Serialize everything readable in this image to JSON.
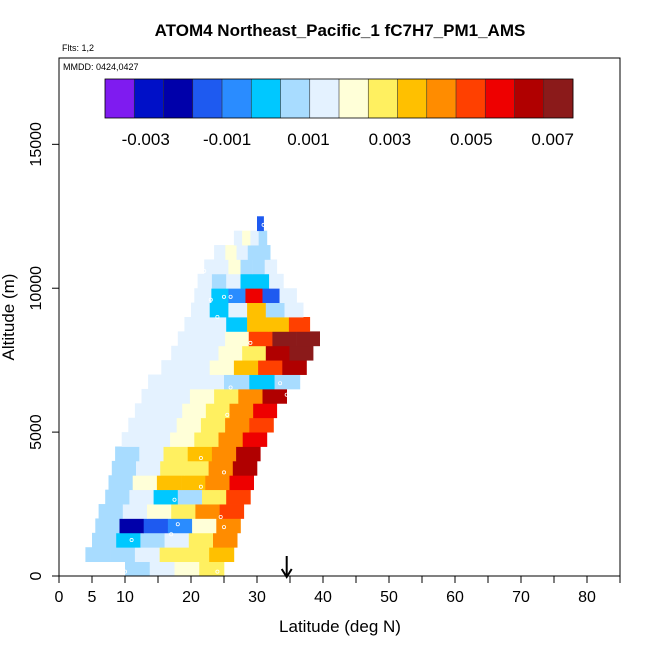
{
  "chart_data": {
    "type": "heatmap",
    "title": "ATOM4 Northeast_Pacific_1 fC7H7_PM1_AMS",
    "annotations": {
      "flights": "Flts: 1,2",
      "dates": "MMDD: 0424,0427"
    },
    "xlabel": "Latitude (deg N)",
    "ylabel": "Altitude (m)",
    "xlim": [
      0,
      85
    ],
    "ylim": [
      0,
      18000
    ],
    "x_ticks": [
      {
        "value": 0,
        "label": "0"
      },
      {
        "value": 5,
        "label": "5"
      },
      {
        "value": 10,
        "label": "10"
      },
      {
        "value": 20,
        "label": "20"
      },
      {
        "value": 30,
        "label": "30"
      },
      {
        "value": 40,
        "label": "40"
      },
      {
        "value": 50,
        "label": "50"
      },
      {
        "value": 60,
        "label": "60"
      },
      {
        "value": 70,
        "label": "70"
      },
      {
        "value": 80,
        "label": "80"
      }
    ],
    "x_minor_ticks": [
      15,
      25,
      35,
      45,
      55,
      65,
      75,
      85
    ],
    "y_ticks": [
      {
        "value": 0,
        "label": "0"
      },
      {
        "value": 5000,
        "label": "5000"
      },
      {
        "value": 10000,
        "label": "10000"
      },
      {
        "value": 15000,
        "label": "15000"
      }
    ],
    "colorbar": {
      "range": [
        -0.004,
        0.0075
      ],
      "ticks": [
        {
          "value": -0.003,
          "label": "-0.003"
        },
        {
          "value": -0.001,
          "label": "-0.001"
        },
        {
          "value": 0.001,
          "label": "0.001"
        },
        {
          "value": 0.003,
          "label": "0.003"
        },
        {
          "value": 0.005,
          "label": "0.005"
        },
        {
          "value": 0.007,
          "label": "0.007"
        }
      ],
      "colors": [
        "#7f1bf0",
        "#0010c8",
        "#0000aa",
        "#1e5af0",
        "#2a8cff",
        "#00c8ff",
        "#a8dcff",
        "#e4f2ff",
        "#ffffd8",
        "#fff060",
        "#ffc000",
        "#ff8c00",
        "#ff4000",
        "#ee0000",
        "#b00000",
        "#8b1a1a"
      ]
    },
    "marker": {
      "latitude": 34.5,
      "label": "arrow"
    },
    "profiles": [
      {
        "alt": 250,
        "lat_min": 10,
        "lat_max": 25,
        "values": [
          0.0006,
          0.0013,
          0.0022,
          0.003
        ]
      },
      {
        "alt": 750,
        "lat_min": 4,
        "lat_max": 26.5,
        "values": [
          0.0006,
          0.0009,
          0.0014,
          0.0025,
          0.0031,
          0.0037
        ]
      },
      {
        "alt": 1250,
        "lat_min": 5,
        "lat_max": 27,
        "values": [
          0.0008,
          -0.0001,
          0.0004,
          0.0015,
          0.003,
          0.0045
        ]
      },
      {
        "alt": 1750,
        "lat_min": 5.5,
        "lat_max": 27.5,
        "values": [
          0.0005,
          -0.0022,
          -0.0015,
          -0.001,
          0.0022,
          0.004
        ]
      },
      {
        "alt": 2250,
        "lat_min": 6,
        "lat_max": 28,
        "values": [
          0.0009,
          0.0012,
          0.0021,
          0.003,
          0.0042,
          0.005
        ]
      },
      {
        "alt": 2750,
        "lat_min": 7,
        "lat_max": 29,
        "values": [
          0.0008,
          0.0012,
          0.0003,
          0.0006,
          0.0031,
          0.0052
        ]
      },
      {
        "alt": 3250,
        "lat_min": 7.5,
        "lat_max": 29.5,
        "values": [
          0.0008,
          0.0023,
          0.0032,
          0.0035,
          0.0044,
          0.0058
        ]
      },
      {
        "alt": 3750,
        "lat_min": 8,
        "lat_max": 30,
        "values": [
          0.0009,
          0.0017,
          0.0026,
          0.003,
          0.0042,
          0.0062
        ]
      },
      {
        "alt": 4250,
        "lat_min": 8.5,
        "lat_max": 30.5,
        "values": [
          0.001,
          0.0016,
          0.0028,
          0.0033,
          0.0045,
          0.0062
        ]
      },
      {
        "alt": 4750,
        "lat_min": 9.5,
        "lat_max": 31.5,
        "values": [
          0.0011,
          0.0014,
          0.0022,
          0.0031,
          0.0043,
          0.0058
        ]
      },
      {
        "alt": 5250,
        "lat_min": 10.5,
        "lat_max": 32.5,
        "values": [
          0.0011,
          0.0016,
          0.0021,
          0.0029,
          0.0041,
          0.0052
        ]
      },
      {
        "alt": 5750,
        "lat_min": 11.5,
        "lat_max": 33,
        "values": [
          0.0012,
          0.0016,
          0.0022,
          0.003,
          0.0042,
          0.0056
        ]
      },
      {
        "alt": 6250,
        "lat_min": 12.5,
        "lat_max": 34.5,
        "values": [
          0.0012,
          0.0016,
          0.0021,
          0.0031,
          0.0045,
          0.0062
        ]
      },
      {
        "alt": 6750,
        "lat_min": 13.5,
        "lat_max": 36.5,
        "values": [
          0.0012,
          0.0014,
          0.0017,
          0.001,
          0.0002,
          0.0006
        ]
      },
      {
        "alt": 7250,
        "lat_min": 15.5,
        "lat_max": 37.5,
        "values": [
          0.0012,
          0.0015,
          0.002,
          0.0033,
          0.0048,
          0.0062
        ]
      },
      {
        "alt": 7750,
        "lat_min": 17,
        "lat_max": 38.5,
        "values": [
          0.0012,
          0.0015,
          0.0019,
          0.0025,
          0.0062,
          0.0068
        ]
      },
      {
        "alt": 8250,
        "lat_min": 18,
        "lat_max": 39.5,
        "values": [
          0.0012,
          0.0015,
          0.0021,
          0.0052,
          0.0068,
          0.0072
        ]
      },
      {
        "alt": 8750,
        "lat_min": 19,
        "lat_max": 38,
        "values": [
          0.0012,
          0.0014,
          0.0002,
          0.0035,
          0.0036,
          0.0048
        ]
      },
      {
        "alt": 9250,
        "lat_min": 20,
        "lat_max": 37,
        "values": [
          0.0012,
          0.0001,
          0.0014,
          0.0034,
          0.0008,
          0.0016
        ]
      },
      {
        "alt": 9750,
        "lat_min": 20.5,
        "lat_max": 36,
        "values": [
          0.0012,
          0.0003,
          -0.0005,
          0.0055,
          -0.0012,
          0.0013
        ]
      },
      {
        "alt": 10250,
        "lat_min": 21,
        "lat_max": 34,
        "values": [
          0.0013,
          0.0008,
          0.0015,
          0.0002,
          -0.0003,
          0.0012
        ]
      },
      {
        "alt": 10750,
        "lat_min": 22,
        "lat_max": 33,
        "values": [
          0.0014,
          0.0012,
          0.0024,
          0.0005,
          0.0009,
          0.0012
        ]
      },
      {
        "alt": 11250,
        "lat_min": 23.5,
        "lat_max": 32,
        "values": [
          0.0015,
          0.0022,
          0.0011,
          0.0006,
          0.0008
        ]
      },
      {
        "alt": 11750,
        "lat_min": 26.5,
        "lat_max": 31.5,
        "values": [
          0.0015,
          0.0022,
          0.0014,
          0.0008
        ]
      },
      {
        "alt": 12250,
        "lat_min": 30,
        "lat_max": 31,
        "values": [
          -0.0015
        ]
      }
    ],
    "sample_points": [
      [
        10,
        150
      ],
      [
        24,
        150
      ],
      [
        11,
        1250
      ],
      [
        17,
        1450
      ],
      [
        25,
        1700
      ],
      [
        18,
        1800
      ],
      [
        24.5,
        2050
      ],
      [
        17.5,
        2650
      ],
      [
        21.5,
        3100
      ],
      [
        25,
        3600
      ],
      [
        21.5,
        4100
      ],
      [
        25.5,
        5600
      ],
      [
        26,
        6550
      ],
      [
        34.5,
        6300
      ],
      [
        33.5,
        6700
      ],
      [
        29,
        8100
      ],
      [
        24,
        9000
      ],
      [
        23,
        9600
      ],
      [
        25,
        9700
      ],
      [
        26,
        9700
      ],
      [
        22,
        10600
      ],
      [
        31,
        12200
      ]
    ]
  }
}
